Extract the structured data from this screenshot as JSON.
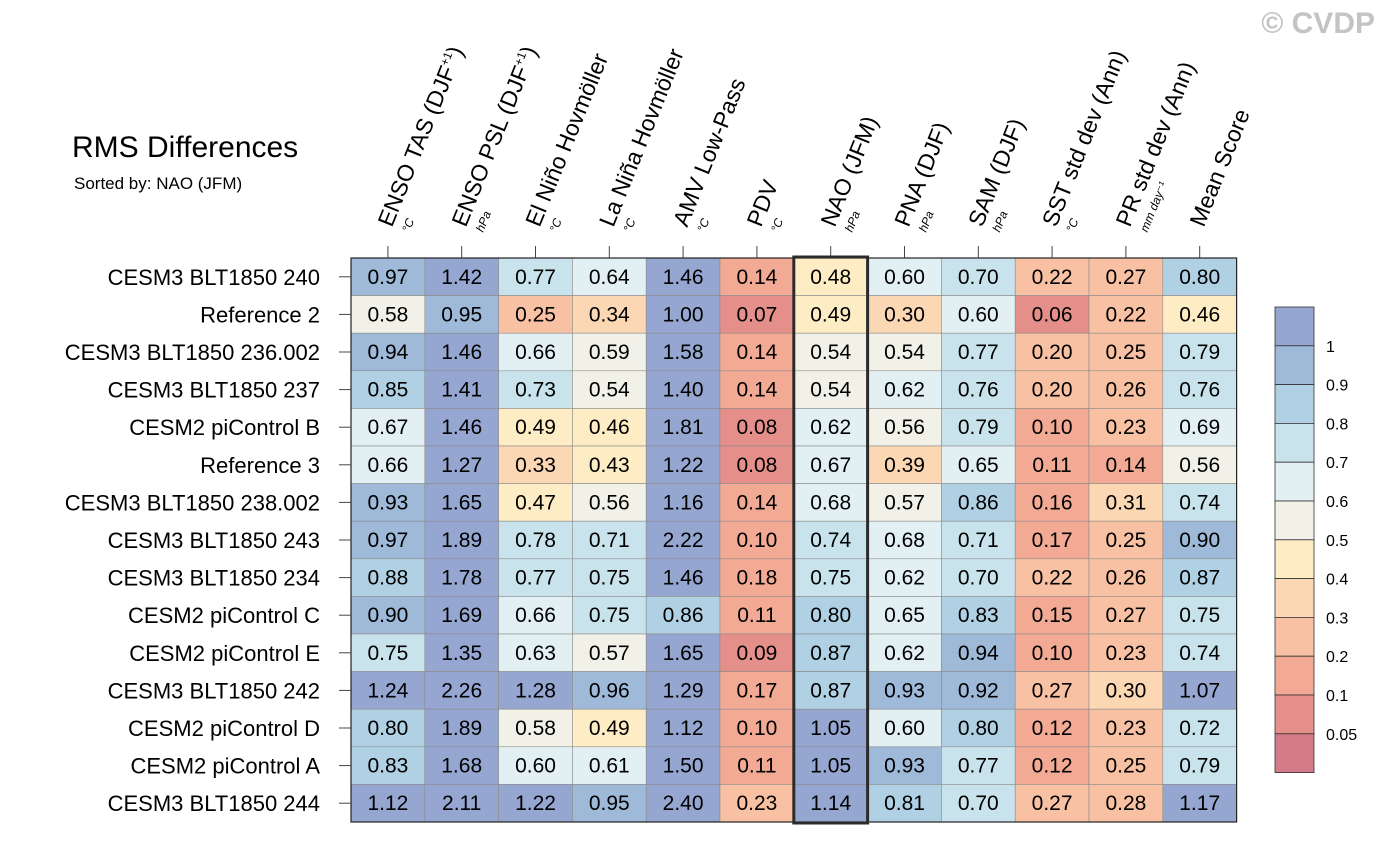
{
  "watermark": "© CVDP",
  "chart_data": {
    "type": "heatmap",
    "title": "RMS Differences",
    "subtitle": "Sorted by: NAO (JFM)",
    "highlight_column": "NAO (JFM)",
    "columns": [
      {
        "label": "ENSO TAS (DJF",
        "sup": "+1",
        "tail": ")",
        "unit": "°C"
      },
      {
        "label": "ENSO PSL (DJF",
        "sup": "+1",
        "tail": ")",
        "unit": "hPa"
      },
      {
        "label": "El Niño Hovmöller",
        "sup": "",
        "tail": "",
        "unit": "°C"
      },
      {
        "label": "La Niña Hovmöller",
        "sup": "",
        "tail": "",
        "unit": "°C"
      },
      {
        "label": "AMV Low-Pass",
        "sup": "",
        "tail": "",
        "unit": "°C"
      },
      {
        "label": "PDV",
        "sup": "",
        "tail": "",
        "unit": "°C"
      },
      {
        "label": "NAO (JFM)",
        "sup": "",
        "tail": "",
        "unit": "hPa"
      },
      {
        "label": "PNA (DJF)",
        "sup": "",
        "tail": "",
        "unit": "hPa"
      },
      {
        "label": "SAM (DJF)",
        "sup": "",
        "tail": "",
        "unit": "hPa"
      },
      {
        "label": "SST std dev (Ann)",
        "sup": "",
        "tail": "",
        "unit": "°C"
      },
      {
        "label": "PR std dev (Ann)",
        "sup": "",
        "tail": "",
        "unit": "mm day⁻¹"
      },
      {
        "label": "Mean Score",
        "sup": "",
        "tail": "",
        "unit": ""
      }
    ],
    "rows": [
      {
        "name": "CESM3 BLT1850 240",
        "values": [
          "0.97",
          "1.42",
          "0.77",
          "0.64",
          "1.46",
          "0.14",
          "0.48",
          "0.60",
          "0.70",
          "0.22",
          "0.27",
          "0.80"
        ]
      },
      {
        "name": "Reference 2",
        "values": [
          "0.58",
          "0.95",
          "0.25",
          "0.34",
          "1.00",
          "0.07",
          "0.49",
          "0.30",
          "0.60",
          "0.06",
          "0.22",
          "0.46"
        ]
      },
      {
        "name": "CESM3 BLT1850 236.002",
        "values": [
          "0.94",
          "1.46",
          "0.66",
          "0.59",
          "1.58",
          "0.14",
          "0.54",
          "0.54",
          "0.77",
          "0.20",
          "0.25",
          "0.79"
        ]
      },
      {
        "name": "CESM3 BLT1850 237",
        "values": [
          "0.85",
          "1.41",
          "0.73",
          "0.54",
          "1.40",
          "0.14",
          "0.54",
          "0.62",
          "0.76",
          "0.20",
          "0.26",
          "0.76"
        ]
      },
      {
        "name": "CESM2 piControl B",
        "values": [
          "0.67",
          "1.46",
          "0.49",
          "0.46",
          "1.81",
          "0.08",
          "0.62",
          "0.56",
          "0.79",
          "0.10",
          "0.23",
          "0.69"
        ]
      },
      {
        "name": "Reference 3",
        "values": [
          "0.66",
          "1.27",
          "0.33",
          "0.43",
          "1.22",
          "0.08",
          "0.67",
          "0.39",
          "0.65",
          "0.11",
          "0.14",
          "0.56"
        ]
      },
      {
        "name": "CESM3 BLT1850 238.002",
        "values": [
          "0.93",
          "1.65",
          "0.47",
          "0.56",
          "1.16",
          "0.14",
          "0.68",
          "0.57",
          "0.86",
          "0.16",
          "0.31",
          "0.74"
        ]
      },
      {
        "name": "CESM3 BLT1850 243",
        "values": [
          "0.97",
          "1.89",
          "0.78",
          "0.71",
          "2.22",
          "0.10",
          "0.74",
          "0.68",
          "0.71",
          "0.17",
          "0.25",
          "0.90"
        ]
      },
      {
        "name": "CESM3 BLT1850 234",
        "values": [
          "0.88",
          "1.78",
          "0.77",
          "0.75",
          "1.46",
          "0.18",
          "0.75",
          "0.62",
          "0.70",
          "0.22",
          "0.26",
          "0.87"
        ]
      },
      {
        "name": "CESM2 piControl C",
        "values": [
          "0.90",
          "1.69",
          "0.66",
          "0.75",
          "0.86",
          "0.11",
          "0.80",
          "0.65",
          "0.83",
          "0.15",
          "0.27",
          "0.75"
        ]
      },
      {
        "name": "CESM2 piControl E",
        "values": [
          "0.75",
          "1.35",
          "0.63",
          "0.57",
          "1.65",
          "0.09",
          "0.87",
          "0.62",
          "0.94",
          "0.10",
          "0.23",
          "0.74"
        ]
      },
      {
        "name": "CESM3 BLT1850 242",
        "values": [
          "1.24",
          "2.26",
          "1.28",
          "0.96",
          "1.29",
          "0.17",
          "0.87",
          "0.93",
          "0.92",
          "0.27",
          "0.30",
          "1.07"
        ]
      },
      {
        "name": "CESM2 piControl D",
        "values": [
          "0.80",
          "1.89",
          "0.58",
          "0.49",
          "1.12",
          "0.10",
          "1.05",
          "0.60",
          "0.80",
          "0.12",
          "0.23",
          "0.72"
        ]
      },
      {
        "name": "CESM2 piControl A",
        "values": [
          "0.83",
          "1.68",
          "0.60",
          "0.61",
          "1.50",
          "0.11",
          "1.05",
          "0.93",
          "0.77",
          "0.12",
          "0.25",
          "0.79"
        ]
      },
      {
        "name": "CESM3 BLT1850 244",
        "values": [
          "1.12",
          "2.11",
          "1.22",
          "0.95",
          "2.40",
          "0.23",
          "1.14",
          "0.81",
          "0.70",
          "0.27",
          "0.28",
          "1.17"
        ]
      }
    ],
    "colorbar": {
      "levels": [
        0.05,
        0.1,
        0.2,
        0.3,
        0.4,
        0.5,
        0.6,
        0.7,
        0.8,
        0.9,
        1
      ],
      "tick_labels": [
        "0.05",
        "0.1",
        "0.2",
        "0.3",
        "0.4",
        "0.5",
        "0.6",
        "0.7",
        "0.8",
        "0.9",
        "1"
      ],
      "colors": [
        "#d47a88",
        "#e58f8b",
        "#f2aa95",
        "#f8c1a3",
        "#fbd7b4",
        "#fdecc4",
        "#f2f1e8",
        "#e3f0f3",
        "#c9e3ec",
        "#b0d1e3",
        "#9fb9d8",
        "#95a6d1"
      ]
    }
  }
}
